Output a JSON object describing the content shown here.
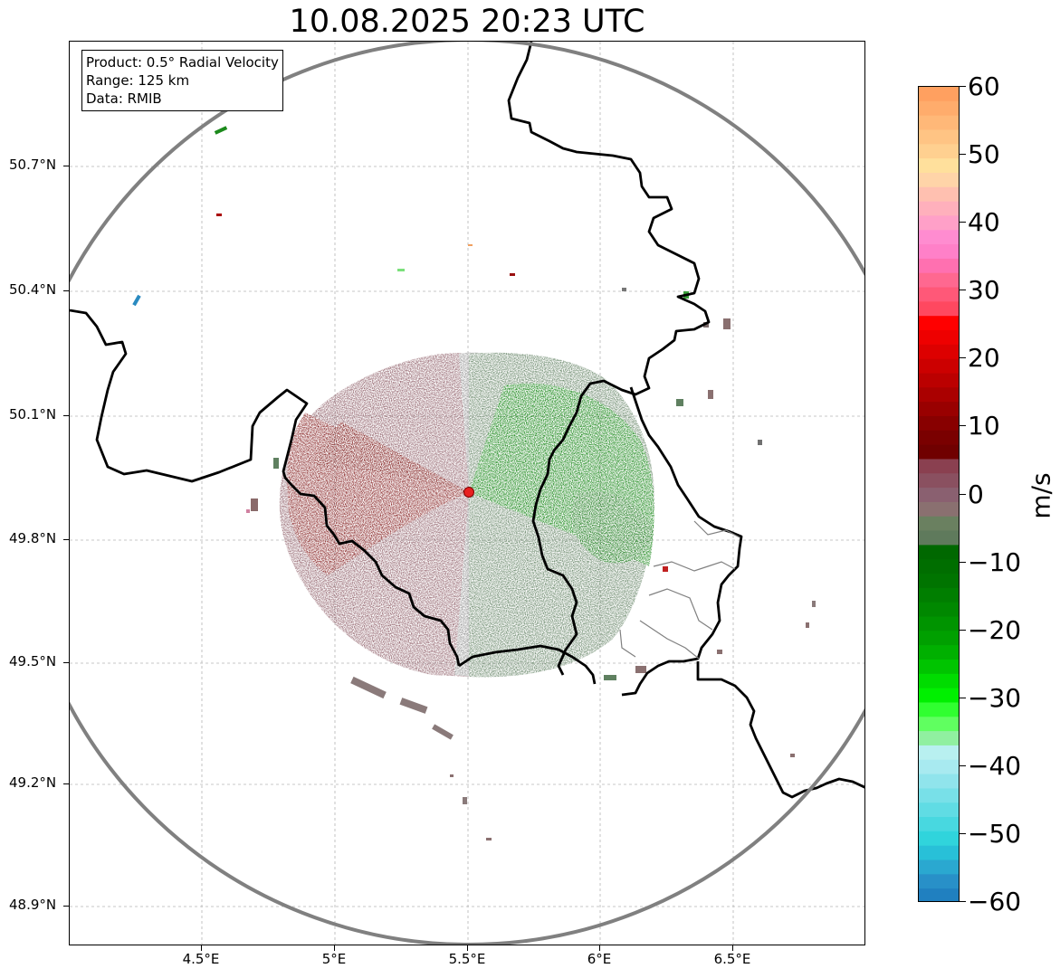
{
  "title": "10.08.2025 20:23 UTC",
  "info": {
    "product": "Product: 0.5° Radial Velocity",
    "range": "Range: 125 km",
    "source": "Data: RMIB"
  },
  "axes": {
    "lat_labels": [
      "50.7°N",
      "50.4°N",
      "50.1°N",
      "49.8°N",
      "49.5°N",
      "49.2°N",
      "48.9°N"
    ],
    "lon_labels": [
      "4.5°E",
      "5°E",
      "5.5°E",
      "6°E",
      "6.5°E"
    ],
    "lon_range": [
      4.0,
      7.0
    ],
    "lat_range": [
      48.8,
      51.0
    ],
    "grid": true
  },
  "colorbar": {
    "unit": "m/s",
    "min": -60,
    "max": 60,
    "tick_labels": [
      "60",
      "50",
      "40",
      "30",
      "20",
      "10",
      "0",
      "−10",
      "−20",
      "−30",
      "−40",
      "−50",
      "−60"
    ],
    "tick_values": [
      60,
      50,
      40,
      30,
      20,
      10,
      0,
      -10,
      -20,
      -30,
      -40,
      -50,
      -60
    ]
  },
  "radar": {
    "site_lon": 5.505,
    "site_lat": 49.914,
    "site_color": "#e82020",
    "range_ring_color": "#808080"
  },
  "colors": {
    "receding_strong": "#7a0000",
    "receding_weak": "#8a5560",
    "neutral": "#8a8a8a",
    "approaching_weak": "#5f8060",
    "approaching_strong": "#007000"
  }
}
